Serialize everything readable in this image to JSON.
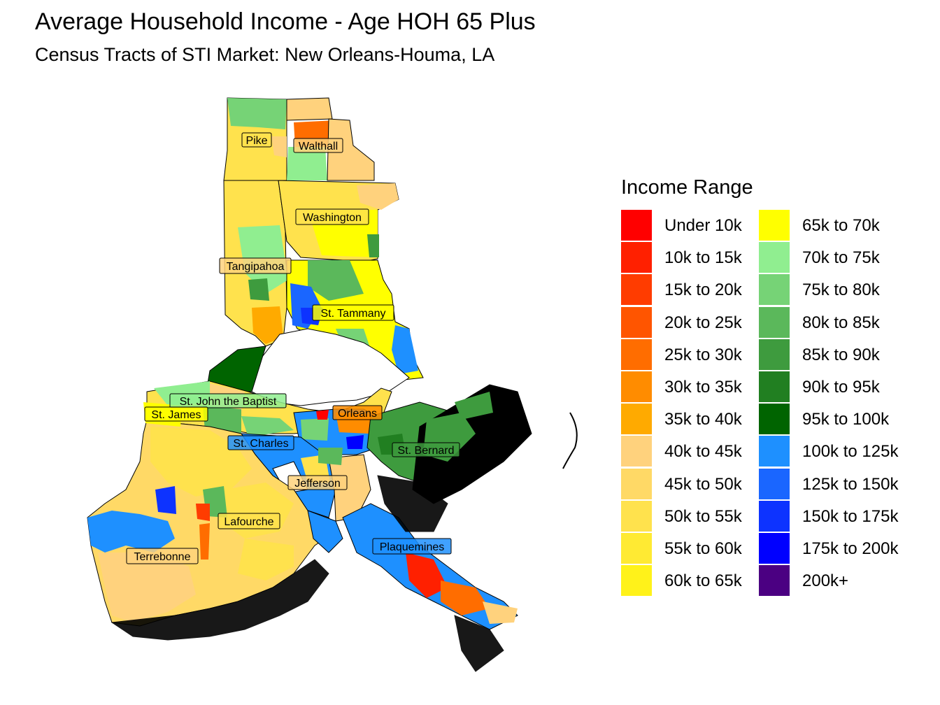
{
  "title": "Average Household Income - Age HOH 65 Plus",
  "subtitle": "Census Tracts of STI Market: New Orleans-Houma, LA",
  "legend": {
    "title": "Income Range",
    "items": [
      {
        "label": "Under 10k",
        "color": "#ff0000"
      },
      {
        "label": "10k to 15k",
        "color": "#ff2000"
      },
      {
        "label": "15k to 20k",
        "color": "#ff3c00"
      },
      {
        "label": "20k to 25k",
        "color": "#ff5500"
      },
      {
        "label": "25k to 30k",
        "color": "#ff6d00"
      },
      {
        "label": "30k to 35k",
        "color": "#ff8c00"
      },
      {
        "label": "35k to 40k",
        "color": "#ffaa00"
      },
      {
        "label": "40k to 45k",
        "color": "#ffd27d"
      },
      {
        "label": "45k to 50k",
        "color": "#ffd966"
      },
      {
        "label": "50k to 55k",
        "color": "#ffe24d"
      },
      {
        "label": "55k to 60k",
        "color": "#ffea33"
      },
      {
        "label": "60k to 65k",
        "color": "#fff21a"
      },
      {
        "label": "65k to 70k",
        "color": "#ffff00"
      },
      {
        "label": "70k to 75k",
        "color": "#90ee90"
      },
      {
        "label": "75k to 80k",
        "color": "#76d376"
      },
      {
        "label": "80k to 85k",
        "color": "#5bb85b"
      },
      {
        "label": "85k to 90k",
        "color": "#3e9b3e"
      },
      {
        "label": "90k to 95k",
        "color": "#217f21"
      },
      {
        "label": "95k to 100k",
        "color": "#006400"
      },
      {
        "label": "100k to 125k",
        "color": "#1e90ff"
      },
      {
        "label": "125k to 150k",
        "color": "#1a66ff"
      },
      {
        "label": "150k to 175k",
        "color": "#0d33ff"
      },
      {
        "label": "175k to 200k",
        "color": "#0000ff"
      },
      {
        "label": "200k+",
        "color": "#4b0082"
      }
    ]
  },
  "counties": [
    "Pike",
    "Walthall",
    "Washington",
    "Tangipahoa",
    "St. Tammany",
    "St. John the Baptist",
    "St. James",
    "Orleans",
    "St. Charles",
    "St. Bernard",
    "Jefferson",
    "Lafourche",
    "Terrebonne",
    "Plaquemines"
  ]
}
